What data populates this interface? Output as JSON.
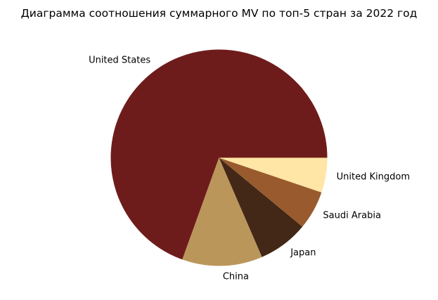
{
  "chart_data": {
    "type": "pie",
    "title": "Диаграмма соотношения суммарного MV по топ-5 стран за 2022 год",
    "direction": "counterclockwise",
    "start_angle": 0,
    "slices": [
      {
        "label": "United States",
        "value": 69.5,
        "color": "#6e1c1b"
      },
      {
        "label": "China",
        "value": 12.0,
        "color": "#bb965b"
      },
      {
        "label": "Japan",
        "value": 7.5,
        "color": "#432817"
      },
      {
        "label": "Saudi Arabia",
        "value": 5.8,
        "color": "#995b2d"
      },
      {
        "label": "United Kingdom",
        "value": 5.2,
        "color": "#ffe5a6"
      }
    ]
  }
}
